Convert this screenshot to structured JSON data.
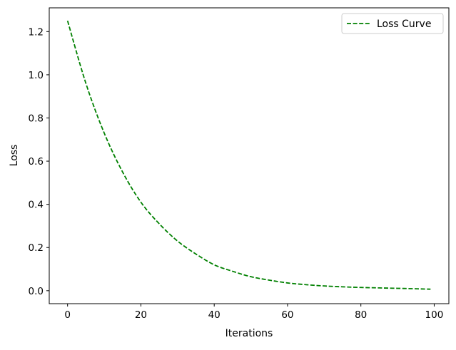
{
  "chart_data": {
    "type": "line",
    "title": "",
    "xlabel": "Iterations",
    "ylabel": "Loss",
    "xlim": [
      -5,
      104
    ],
    "ylim": [
      -0.06,
      1.31
    ],
    "xticks": [
      0,
      20,
      40,
      60,
      80,
      100
    ],
    "xtick_labels": [
      "0",
      "20",
      "40",
      "60",
      "80",
      "100"
    ],
    "yticks": [
      0.0,
      0.2,
      0.4,
      0.6,
      0.8,
      1.0,
      1.2
    ],
    "ytick_labels": [
      "0.0",
      "0.2",
      "0.4",
      "0.6",
      "0.8",
      "1.0",
      "1.2"
    ],
    "grid": false,
    "legend_position": "upper right",
    "series": [
      {
        "name": "Loss Curve",
        "color": "#008000",
        "line_style": "dashed",
        "x": [
          0,
          5,
          10,
          15,
          20,
          25,
          30,
          35,
          40,
          45,
          50,
          55,
          60,
          65,
          70,
          75,
          80,
          85,
          90,
          95,
          99
        ],
        "y": [
          1.25,
          0.96,
          0.73,
          0.55,
          0.41,
          0.31,
          0.23,
          0.17,
          0.12,
          0.09,
          0.065,
          0.049,
          0.036,
          0.028,
          0.022,
          0.018,
          0.015,
          0.013,
          0.011,
          0.009,
          0.007
        ]
      }
    ]
  }
}
